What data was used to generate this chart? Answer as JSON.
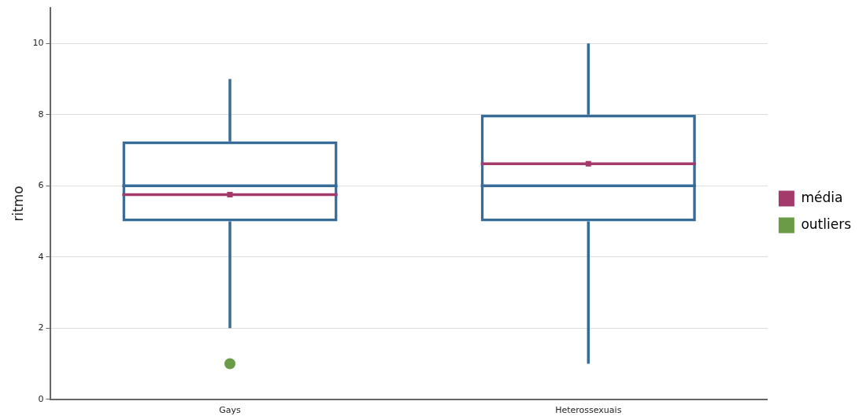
{
  "chart_data": {
    "type": "box",
    "ylabel": "ritmo",
    "categories": [
      "Gays",
      "Heterossexuais"
    ],
    "ylim": [
      0,
      11
    ],
    "yticks": [
      0,
      2,
      4,
      6,
      8,
      10
    ],
    "grid": "y",
    "legend": "right",
    "series": [
      {
        "type": "box",
        "color": "#376b98",
        "boxes": [
          {
            "low": 2,
            "q1": 5,
            "median": 6,
            "q3": 7.25,
            "high": 9
          },
          {
            "low": 1,
            "q1": 5,
            "median": 6,
            "q3": 8,
            "high": 10
          }
        ]
      },
      {
        "name": "média",
        "type": "scatter",
        "color": "#a33a6b",
        "x": [
          "Gays",
          "Heterossexuais"
        ],
        "values": [
          5.75,
          6.62
        ]
      },
      {
        "name": "outliers",
        "type": "scatter",
        "marker": "circle",
        "color": "#6a9c48",
        "x": [
          "Gays"
        ],
        "values": [
          1
        ]
      }
    ]
  }
}
